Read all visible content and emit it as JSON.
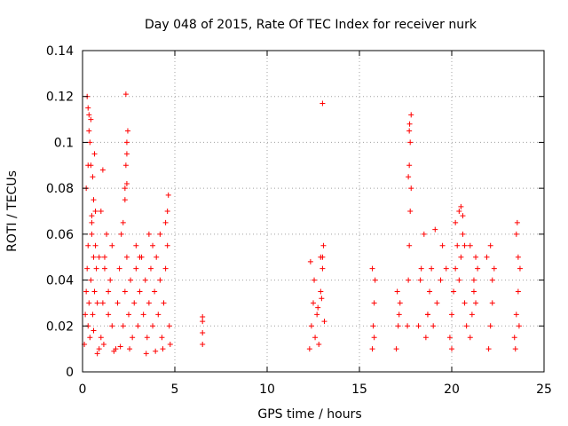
{
  "chart_data": {
    "type": "scatter",
    "title": "Day 048 of 2015, Rate Of TEC Index for receiver nurk",
    "xlabel": "GPS time / hours",
    "ylabel": "ROTI / TECUs",
    "xlim": [
      0,
      25
    ],
    "ylim": [
      0,
      0.14
    ],
    "xticks": [
      "0",
      "5",
      "10",
      "15",
      "20",
      "25"
    ],
    "yticks": [
      "0",
      "0.02",
      "0.04",
      "0.06",
      "0.08",
      "0.1",
      "0.12",
      "0.14"
    ],
    "grid": true,
    "marker": "plus",
    "color": "#ff0000",
    "series": [
      {
        "x": [
          0.1,
          0.15,
          0.2,
          0.25,
          0.3,
          0.3,
          0.35,
          0.4,
          0.45,
          0.5,
          0.55,
          0.6,
          0.6,
          0.65,
          0.7,
          0.75,
          0.8,
          0.2,
          0.3,
          0.4,
          0.5,
          0.6,
          0.7,
          0.35,
          0.45,
          0.55,
          0.65,
          1.0,
          1.1,
          1.2,
          1.3,
          1.4,
          1.5,
          1.6,
          1.0,
          1.2,
          1.4,
          1.6,
          1.8,
          1.9,
          2.0,
          2.1,
          2.2,
          2.3,
          2.4,
          2.5,
          2.6,
          2.2,
          2.3,
          2.35,
          2.4,
          2.45,
          2.3,
          2.4,
          2.7,
          2.8,
          2.9,
          3.0,
          3.1,
          3.2,
          3.3,
          3.4,
          3.5,
          3.6,
          3.7,
          3.8,
          3.9,
          4.0,
          4.1,
          4.2,
          4.3,
          4.4,
          4.5,
          4.6,
          4.7,
          4.5,
          4.6,
          4.65,
          3.6,
          3.8,
          4.2,
          3.1,
          2.9,
          0.8,
          0.9,
          1.15,
          1.7,
          2.05,
          2.55,
          3.45,
          3.95,
          4.35,
          4.75,
          6.5,
          6.5,
          6.5,
          6.5,
          12.3,
          12.4,
          12.5,
          12.6,
          12.7,
          12.8,
          12.9,
          13.0,
          13.1,
          12.35,
          12.55,
          12.75,
          12.95,
          13.05,
          12.9,
          13.0,
          15.7,
          15.75,
          15.8,
          15.85,
          15.7,
          15.8,
          17.0,
          17.1,
          17.2,
          17.05,
          17.15,
          17.6,
          17.65,
          17.7,
          17.75,
          17.8,
          17.65,
          17.7,
          17.75,
          17.7,
          17.72,
          17.8,
          18.5,
          18.6,
          18.7,
          18.8,
          18.9,
          19.0,
          19.2,
          19.4,
          18.7,
          19.1,
          19.5,
          19.7,
          19.9,
          20.0,
          20.1,
          20.2,
          20.3,
          20.4,
          20.5,
          20.6,
          20.7,
          20.8,
          20.2,
          20.4,
          20.5,
          20.6,
          20.7,
          20.0,
          21.0,
          21.1,
          21.2,
          21.3,
          21.4,
          21.0,
          21.2,
          21.3,
          22.0,
          22.1,
          22.2,
          22.3,
          21.9,
          22.1,
          22.2,
          23.4,
          23.5,
          23.6,
          23.7,
          23.5,
          23.6,
          23.55,
          23.45,
          23.65,
          18.2,
          18.3,
          18.35,
          13.0,
          0.25,
          0.3,
          2.35,
          0.45,
          2.4,
          0.35,
          0.5,
          1.1,
          0.9
        ],
        "y": [
          0.012,
          0.025,
          0.035,
          0.045,
          0.02,
          0.055,
          0.03,
          0.015,
          0.04,
          0.06,
          0.025,
          0.05,
          0.018,
          0.035,
          0.07,
          0.045,
          0.03,
          0.08,
          0.09,
          0.1,
          0.065,
          0.075,
          0.055,
          0.105,
          0.11,
          0.085,
          0.095,
          0.015,
          0.03,
          0.045,
          0.06,
          0.025,
          0.04,
          0.02,
          0.07,
          0.05,
          0.035,
          0.055,
          0.01,
          0.03,
          0.045,
          0.06,
          0.02,
          0.035,
          0.05,
          0.025,
          0.04,
          0.065,
          0.08,
          0.09,
          0.1,
          0.105,
          0.075,
          0.095,
          0.015,
          0.03,
          0.045,
          0.02,
          0.035,
          0.05,
          0.025,
          0.04,
          0.015,
          0.03,
          0.045,
          0.02,
          0.035,
          0.05,
          0.025,
          0.04,
          0.015,
          0.03,
          0.045,
          0.055,
          0.02,
          0.065,
          0.07,
          0.077,
          0.06,
          0.055,
          0.06,
          0.05,
          0.055,
          0.008,
          0.01,
          0.012,
          0.009,
          0.011,
          0.01,
          0.008,
          0.009,
          0.01,
          0.012,
          0.012,
          0.017,
          0.022,
          0.024,
          0.01,
          0.02,
          0.03,
          0.015,
          0.025,
          0.012,
          0.035,
          0.045,
          0.022,
          0.048,
          0.04,
          0.028,
          0.032,
          0.055,
          0.05,
          0.05,
          0.01,
          0.02,
          0.03,
          0.04,
          0.045,
          0.015,
          0.01,
          0.02,
          0.03,
          0.035,
          0.025,
          0.02,
          0.04,
          0.055,
          0.07,
          0.08,
          0.085,
          0.09,
          0.1,
          0.105,
          0.108,
          0.112,
          0.06,
          0.015,
          0.025,
          0.035,
          0.045,
          0.02,
          0.03,
          0.04,
          0.025,
          0.062,
          0.055,
          0.045,
          0.015,
          0.025,
          0.035,
          0.045,
          0.055,
          0.04,
          0.05,
          0.06,
          0.03,
          0.02,
          0.065,
          0.07,
          0.072,
          0.068,
          0.055,
          0.01,
          0.015,
          0.025,
          0.035,
          0.05,
          0.045,
          0.055,
          0.04,
          0.03,
          0.01,
          0.02,
          0.03,
          0.045,
          0.05,
          0.055,
          0.04,
          0.015,
          0.025,
          0.035,
          0.045,
          0.06,
          0.05,
          0.065,
          0.01,
          0.02,
          0.02,
          0.04,
          0.045,
          0.117,
          0.12,
          0.115,
          0.121,
          0.09,
          0.082,
          0.112,
          0.068,
          0.088,
          0.05
        ]
      }
    ]
  }
}
